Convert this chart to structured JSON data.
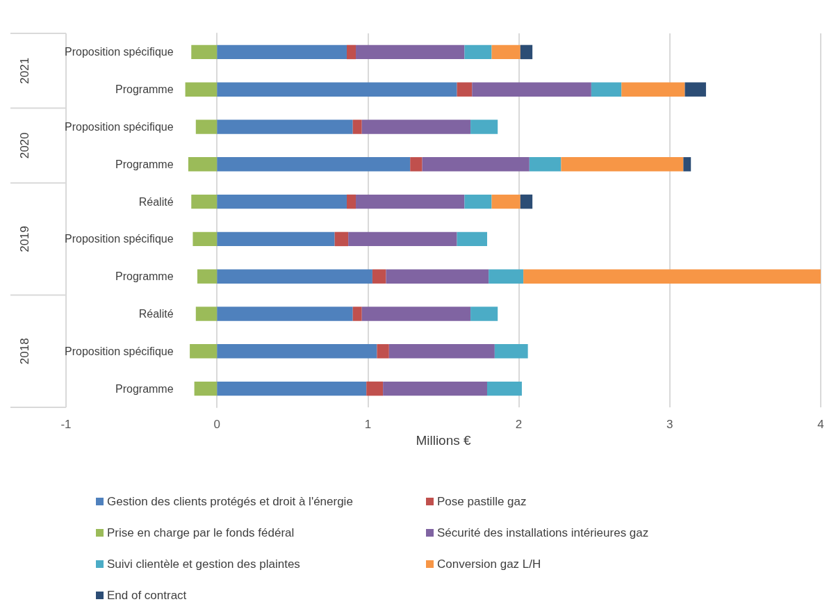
{
  "chart_data": {
    "type": "bar",
    "orientation": "horizontal",
    "stacked": true,
    "categories": [
      "Proposition spécifique",
      "Programme",
      "Proposition spécifique",
      "Programme",
      "Réalité",
      "Proposition spécifique",
      "Programme",
      "Réalité",
      "Proposition spécifique",
      "Programme"
    ],
    "series": [
      {
        "name": "Gestion des clients protégés et droit à l'énergie",
        "color": "#4f81bd",
        "values": [
          0.86,
          1.59,
          0.9,
          1.28,
          0.86,
          0.78,
          1.03,
          0.9,
          1.06,
          0.99
        ]
      },
      {
        "name": "Pose pastille gaz",
        "color": "#c0504d",
        "values": [
          0.06,
          0.1,
          0.06,
          0.08,
          0.06,
          0.09,
          0.09,
          0.06,
          0.08,
          0.11
        ]
      },
      {
        "name": "Prise en charge par le fonds fédéral",
        "color": "#9bbb59",
        "values": [
          -0.17,
          -0.21,
          -0.14,
          -0.19,
          -0.17,
          -0.16,
          -0.13,
          -0.14,
          -0.18,
          -0.15
        ]
      },
      {
        "name": "Sécurité des installations intérieures gaz",
        "color": "#8064a2",
        "values": [
          0.72,
          0.79,
          0.72,
          0.71,
          0.72,
          0.72,
          0.68,
          0.72,
          0.7,
          0.69
        ]
      },
      {
        "name": "Suivi clientèle et gestion des plaintes",
        "color": "#4bacc6",
        "values": [
          0.18,
          0.2,
          0.18,
          0.21,
          0.18,
          0.2,
          0.23,
          0.18,
          0.22,
          0.23
        ]
      },
      {
        "name": "Conversion gaz L/H",
        "color": "#f79646",
        "values": [
          0.19,
          0.42,
          null,
          0.81,
          0.19,
          null,
          1.98,
          null,
          null,
          null
        ]
      },
      {
        "name": "End of contract",
        "color": "#2c4d75",
        "values": [
          0.08,
          0.14,
          null,
          0.05,
          0.08,
          null,
          null,
          null,
          null,
          null
        ]
      }
    ],
    "xlabel": "Millions €",
    "xlim": [
      -1,
      4
    ],
    "xticks": [
      -1,
      0,
      1,
      2,
      3,
      4
    ],
    "grid": "x",
    "legend": "bottom",
    "annotations": [
      "2021",
      "2020",
      "2019",
      "2018"
    ]
  }
}
